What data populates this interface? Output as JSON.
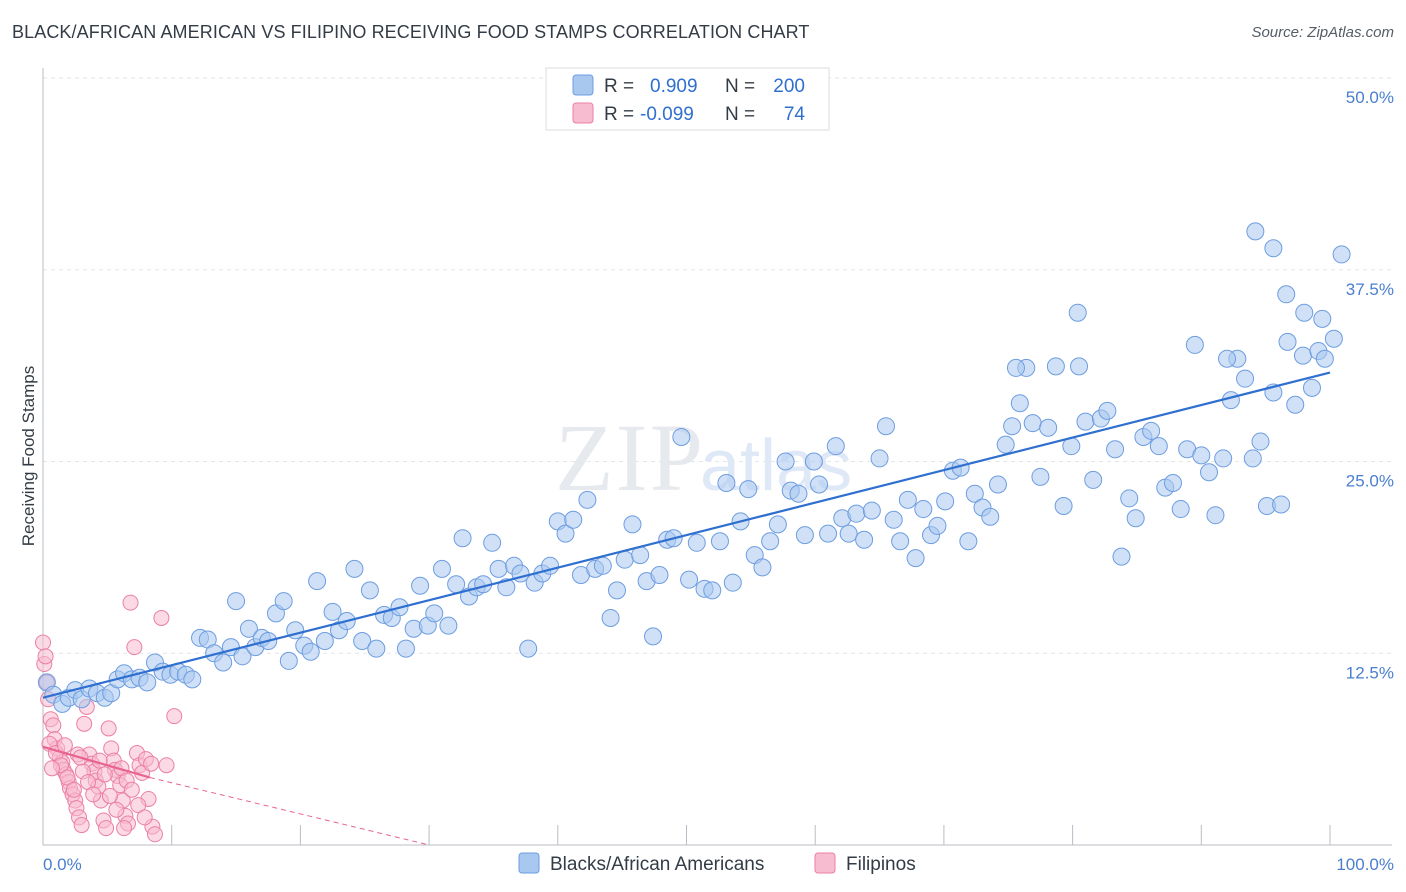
{
  "title": "BLACK/AFRICAN AMERICAN VS FILIPINO RECEIVING FOOD STAMPS CORRELATION CHART",
  "source": "Source: ZipAtlas.com",
  "watermark": "ZIPatlas",
  "colors": {
    "blue_fill": "#a9c8f0",
    "blue_stroke": "#6d9de0",
    "blue_line": "#2f6fd0",
    "pink_fill": "#f7bcd0",
    "pink_stroke": "#ec7fa3",
    "pink_line": "#e8648f",
    "tick_text": "#4a7fcf",
    "grid": "#e3e6ea"
  },
  "legend": {
    "rows": [
      {
        "r_label": "R =",
        "r_value": "0.909",
        "n_label": "N =",
        "n_value": "200"
      },
      {
        "r_label": "R =",
        "r_value": "-0.099",
        "n_label": "N =",
        "n_value": "74"
      }
    ]
  },
  "chart_data": {
    "type": "scatter",
    "ylabel": "Receiving Food Stamps",
    "xlim": [
      0,
      100
    ],
    "ylim": [
      0,
      50
    ],
    "x_tick_labels": [
      "0.0%",
      "100.0%"
    ],
    "y_ticks": [
      12.5,
      25.0,
      37.5,
      50.0
    ],
    "y_tick_labels": [
      "12.5%",
      "25.0%",
      "37.5%",
      "50.0%"
    ],
    "grid": true,
    "legend_position": "top-center",
    "series": [
      {
        "name": "Blacks/African Americans",
        "color": "blue",
        "trend": {
          "x": [
            0,
            100
          ],
          "y": [
            9.6,
            30.8
          ]
        },
        "points": [
          [
            0.3,
            10.6
          ],
          [
            0.8,
            9.8
          ],
          [
            1.5,
            9.2
          ],
          [
            2,
            9.6
          ],
          [
            2.5,
            10.1
          ],
          [
            3,
            9.5
          ],
          [
            3.6,
            10.2
          ],
          [
            4.2,
            9.9
          ],
          [
            4.8,
            9.6
          ],
          [
            5.3,
            9.9
          ],
          [
            5.8,
            10.8
          ],
          [
            6.3,
            11.2
          ],
          [
            6.9,
            10.8
          ],
          [
            7.5,
            10.9
          ],
          [
            8.1,
            10.6
          ],
          [
            8.7,
            11.9
          ],
          [
            9.3,
            11.3
          ],
          [
            9.9,
            11.1
          ],
          [
            10.5,
            11.3
          ],
          [
            11.1,
            11.1
          ],
          [
            11.6,
            10.8
          ],
          [
            12.2,
            13.5
          ],
          [
            12.8,
            13.4
          ],
          [
            13.3,
            12.5
          ],
          [
            14,
            11.9
          ],
          [
            14.6,
            12.9
          ],
          [
            15,
            15.9
          ],
          [
            15.5,
            12.3
          ],
          [
            16,
            14.1
          ],
          [
            16.5,
            12.9
          ],
          [
            17,
            13.5
          ],
          [
            17.5,
            13.3
          ],
          [
            18.1,
            15.1
          ],
          [
            18.7,
            15.9
          ],
          [
            19.1,
            12.0
          ],
          [
            19.6,
            14.0
          ],
          [
            20.3,
            13.0
          ],
          [
            20.8,
            12.6
          ],
          [
            21.3,
            17.2
          ],
          [
            21.9,
            13.3
          ],
          [
            22.5,
            15.2
          ],
          [
            23,
            14.0
          ],
          [
            23.6,
            14.6
          ],
          [
            24.2,
            18.0
          ],
          [
            24.8,
            13.3
          ],
          [
            25.4,
            16.6
          ],
          [
            25.9,
            12.8
          ],
          [
            26.5,
            15.0
          ],
          [
            27.1,
            14.8
          ],
          [
            27.7,
            15.5
          ],
          [
            28.2,
            12.8
          ],
          [
            28.8,
            14.1
          ],
          [
            29.3,
            16.9
          ],
          [
            29.9,
            14.3
          ],
          [
            30.4,
            15.1
          ],
          [
            31,
            18.0
          ],
          [
            31.5,
            14.3
          ],
          [
            32.1,
            17.0
          ],
          [
            32.6,
            20.0
          ],
          [
            33.1,
            16.2
          ],
          [
            33.7,
            16.8
          ],
          [
            34.2,
            17.0
          ],
          [
            34.9,
            19.7
          ],
          [
            35.4,
            18.0
          ],
          [
            36,
            16.8
          ],
          [
            36.6,
            18.2
          ],
          [
            37.1,
            17.7
          ],
          [
            37.7,
            12.8
          ],
          [
            38.2,
            17.1
          ],
          [
            38.8,
            17.7
          ],
          [
            39.4,
            18.2
          ],
          [
            40,
            21.1
          ],
          [
            40.6,
            20.3
          ],
          [
            41.2,
            21.2
          ],
          [
            41.8,
            17.6
          ],
          [
            42.3,
            22.5
          ],
          [
            42.9,
            18.0
          ],
          [
            43.5,
            18.2
          ],
          [
            44.1,
            14.8
          ],
          [
            44.6,
            16.6
          ],
          [
            45.2,
            18.6
          ],
          [
            45.8,
            20.9
          ],
          [
            46.4,
            18.9
          ],
          [
            46.9,
            17.2
          ],
          [
            47.4,
            13.6
          ],
          [
            47.9,
            17.6
          ],
          [
            48.5,
            19.9
          ],
          [
            49,
            20.0
          ],
          [
            49.6,
            26.6
          ],
          [
            50.2,
            17.3
          ],
          [
            50.8,
            19.7
          ],
          [
            51.4,
            16.7
          ],
          [
            52,
            16.6
          ],
          [
            52.6,
            19.8
          ],
          [
            53.1,
            23.6
          ],
          [
            53.6,
            17.1
          ],
          [
            54.2,
            21.1
          ],
          [
            54.8,
            23.2
          ],
          [
            55.3,
            18.9
          ],
          [
            55.9,
            18.1
          ],
          [
            56.5,
            19.8
          ],
          [
            57.1,
            20.9
          ],
          [
            57.7,
            25.0
          ],
          [
            58.1,
            23.1
          ],
          [
            58.7,
            22.9
          ],
          [
            59.2,
            20.2
          ],
          [
            59.9,
            25.0
          ],
          [
            60.3,
            23.5
          ],
          [
            61,
            20.3
          ],
          [
            61.6,
            26.0
          ],
          [
            62.1,
            21.3
          ],
          [
            62.6,
            20.3
          ],
          [
            63.2,
            21.6
          ],
          [
            63.8,
            19.9
          ],
          [
            64.4,
            21.8
          ],
          [
            65,
            25.2
          ],
          [
            65.5,
            27.3
          ],
          [
            66.1,
            21.2
          ],
          [
            66.6,
            19.8
          ],
          [
            67.2,
            22.5
          ],
          [
            67.8,
            18.7
          ],
          [
            68.4,
            21.9
          ],
          [
            69,
            20.2
          ],
          [
            69.5,
            20.8
          ],
          [
            70.1,
            22.4
          ],
          [
            70.7,
            24.4
          ],
          [
            71.3,
            24.6
          ],
          [
            71.9,
            19.8
          ],
          [
            72.4,
            22.9
          ],
          [
            73,
            22.0
          ],
          [
            73.6,
            21.4
          ],
          [
            74.2,
            23.5
          ],
          [
            74.8,
            26.1
          ],
          [
            75.3,
            27.3
          ],
          [
            75.9,
            28.8
          ],
          [
            76.4,
            31.1
          ],
          [
            76.9,
            27.5
          ],
          [
            77.5,
            24.0
          ],
          [
            78.1,
            27.2
          ],
          [
            78.7,
            31.2
          ],
          [
            79.3,
            22.1
          ],
          [
            79.9,
            26.0
          ],
          [
            80.5,
            31.2
          ],
          [
            81,
            27.6
          ],
          [
            81.6,
            23.8
          ],
          [
            82.2,
            27.8
          ],
          [
            82.7,
            28.3
          ],
          [
            83.3,
            25.8
          ],
          [
            83.8,
            18.8
          ],
          [
            84.4,
            22.6
          ],
          [
            84.9,
            21.3
          ],
          [
            85.5,
            26.6
          ],
          [
            86.1,
            27.0
          ],
          [
            86.7,
            26.0
          ],
          [
            87.2,
            23.3
          ],
          [
            87.8,
            23.6
          ],
          [
            88.4,
            21.9
          ],
          [
            88.9,
            25.8
          ],
          [
            89.5,
            32.6
          ],
          [
            90,
            25.4
          ],
          [
            90.6,
            24.3
          ],
          [
            91.1,
            21.5
          ],
          [
            91.7,
            25.2
          ],
          [
            92.3,
            29.0
          ],
          [
            92.8,
            31.7
          ],
          [
            93.4,
            30.4
          ],
          [
            94,
            25.2
          ],
          [
            94.6,
            26.3
          ],
          [
            95.1,
            22.1
          ],
          [
            95.6,
            29.5
          ],
          [
            96.2,
            22.2
          ],
          [
            96.7,
            32.8
          ],
          [
            97.3,
            28.7
          ],
          [
            97.9,
            31.9
          ],
          [
            98.6,
            29.8
          ],
          [
            99.1,
            32.2
          ],
          [
            99.6,
            31.7
          ],
          [
            100.3,
            33.0
          ],
          [
            94.2,
            40.0
          ],
          [
            95.6,
            38.9
          ],
          [
            96.6,
            35.9
          ],
          [
            98,
            34.7
          ],
          [
            99.4,
            34.3
          ],
          [
            100.9,
            38.5
          ],
          [
            80.4,
            34.7
          ],
          [
            75.6,
            31.1
          ],
          [
            92,
            31.7
          ]
        ]
      },
      {
        "name": "Filipinos",
        "color": "pink",
        "trend": {
          "x": [
            0,
            8.3
          ],
          "y": [
            6.4,
            4.4
          ]
        },
        "trend_extension": {
          "x": [
            8.3,
            30.0
          ],
          "y": [
            4.4,
            0.0
          ]
        },
        "points": [
          [
            0,
            13.2
          ],
          [
            0.1,
            11.8
          ],
          [
            0.2,
            12.3
          ],
          [
            0.3,
            10.6
          ],
          [
            0.4,
            9.5
          ],
          [
            0.6,
            8.2
          ],
          [
            0.8,
            7.8
          ],
          [
            0.9,
            6.9
          ],
          [
            1.1,
            6.3
          ],
          [
            1.3,
            5.7
          ],
          [
            1.5,
            5.4
          ],
          [
            1.6,
            4.9
          ],
          [
            1.8,
            4.6
          ],
          [
            2,
            4.1
          ],
          [
            2.1,
            3.7
          ],
          [
            2.3,
            3.3
          ],
          [
            2.5,
            2.9
          ],
          [
            2.6,
            2.4
          ],
          [
            2.8,
            1.8
          ],
          [
            3,
            1.3
          ],
          [
            3.2,
            7.9
          ],
          [
            3.4,
            9.0
          ],
          [
            3.6,
            5.9
          ],
          [
            3.8,
            5.3
          ],
          [
            4,
            4.8
          ],
          [
            4.1,
            4.2
          ],
          [
            4.3,
            3.8
          ],
          [
            4.5,
            2.9
          ],
          [
            4.7,
            1.6
          ],
          [
            4.9,
            1.1
          ],
          [
            5.1,
            7.6
          ],
          [
            5.3,
            6.3
          ],
          [
            5.5,
            5.5
          ],
          [
            5.6,
            4.9
          ],
          [
            5.8,
            4.5
          ],
          [
            6,
            3.9
          ],
          [
            6.2,
            2.9
          ],
          [
            6.4,
            1.9
          ],
          [
            6.6,
            1.4
          ],
          [
            6.8,
            15.8
          ],
          [
            7.1,
            12.9
          ],
          [
            7.3,
            6.0
          ],
          [
            7.5,
            5.2
          ],
          [
            7.7,
            4.7
          ],
          [
            8,
            5.6
          ],
          [
            8.2,
            3.0
          ],
          [
            8.5,
            1.2
          ],
          [
            8.7,
            0.7
          ],
          [
            9.2,
            14.8
          ],
          [
            9.6,
            5.2
          ],
          [
            0.5,
            6.6
          ],
          [
            1,
            6.0
          ],
          [
            1.4,
            5.2
          ],
          [
            1.9,
            4.4
          ],
          [
            2.4,
            3.6
          ],
          [
            2.7,
            5.9
          ],
          [
            3.1,
            4.8
          ],
          [
            3.5,
            4.1
          ],
          [
            3.9,
            3.3
          ],
          [
            4.4,
            5.5
          ],
          [
            4.8,
            4.6
          ],
          [
            5.2,
            3.2
          ],
          [
            5.7,
            2.3
          ],
          [
            6.1,
            5.0
          ],
          [
            6.5,
            4.2
          ],
          [
            6.9,
            3.6
          ],
          [
            7.4,
            2.6
          ],
          [
            7.9,
            1.8
          ],
          [
            8.4,
            5.3
          ],
          [
            10.2,
            8.4
          ],
          [
            1.7,
            6.5
          ],
          [
            2.9,
            5.7
          ],
          [
            0.7,
            5.0
          ],
          [
            6.3,
            1.1
          ]
        ]
      }
    ]
  },
  "bottom_legend": [
    {
      "label": "Blacks/African Americans",
      "color": "blue"
    },
    {
      "label": "Filipinos",
      "color": "pink"
    }
  ]
}
